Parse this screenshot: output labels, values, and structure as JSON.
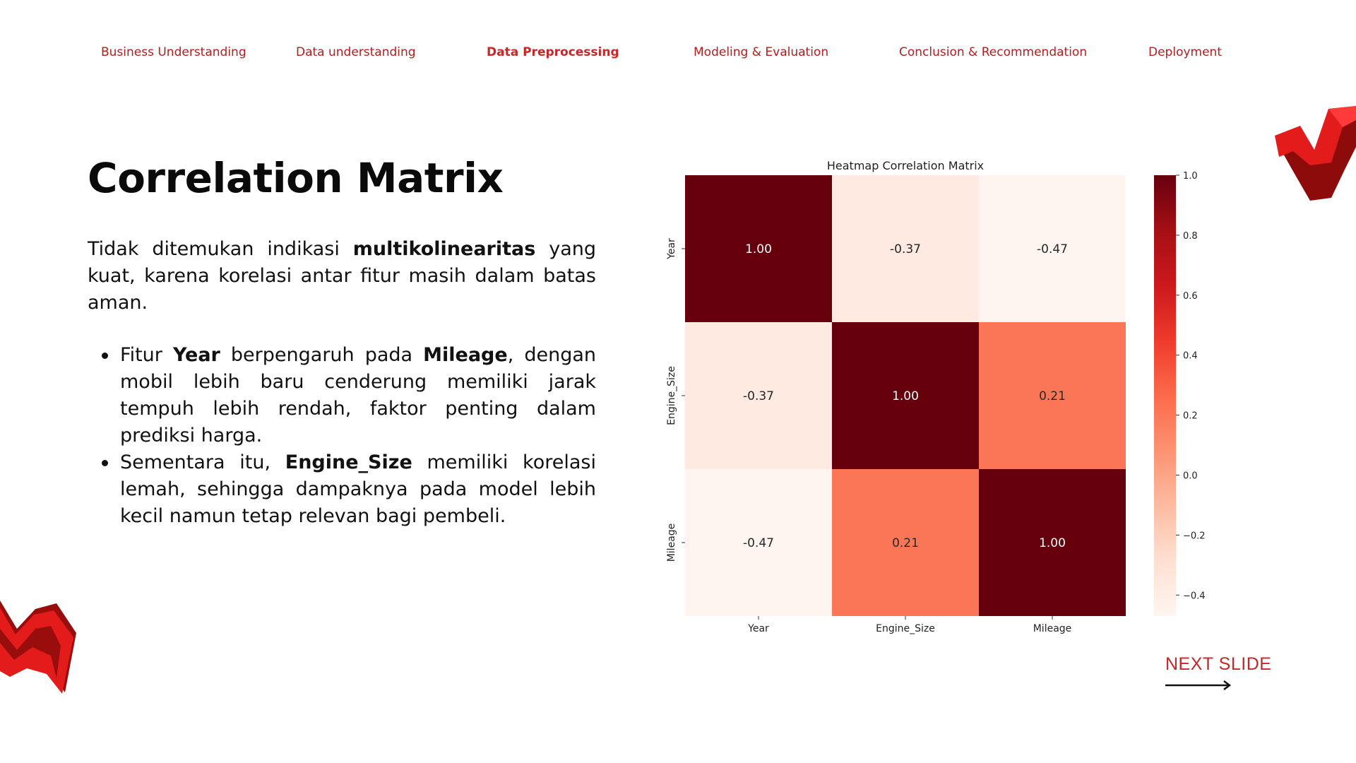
{
  "nav": {
    "items": [
      {
        "label": "Business Understanding",
        "active": false
      },
      {
        "label": "Data understanding",
        "active": false
      },
      {
        "label": "Data Preprocessing",
        "active": true
      },
      {
        "label": "Modeling & Evaluation",
        "active": false
      },
      {
        "label": "Conclusion & Recommendation",
        "active": false
      },
      {
        "label": "Deployment",
        "active": false
      }
    ]
  },
  "content": {
    "title": "Correlation Matrix",
    "intro": {
      "pre": "Tidak ditemukan indikasi ",
      "bold": "multikolinearitas",
      "post": " yang kuat, karena korelasi antar fitur masih dalam batas aman."
    },
    "bullets": [
      {
        "t1": "Fitur ",
        "b1": "Year",
        "t2": " berpengaruh pada ",
        "b2": "Mileage",
        "t3": ", dengan mobil lebih baru cenderung memiliki jarak tempuh lebih rendah, faktor penting dalam prediksi harga."
      },
      {
        "t1": "Sementara itu, ",
        "b1": "Engine_Size",
        "t2": " memiliki korelasi lemah, sehingga dampaknya pada model lebih kecil namun tetap relevan bagi pembeli."
      }
    ]
  },
  "next_slide": {
    "label": "NEXT SLIDE"
  },
  "colors": {
    "accent": "#c62828",
    "nav_text": "#b71c1c",
    "heat_low": "#fff5f0",
    "heat_high": "#67000d"
  },
  "chart_data": {
    "type": "heatmap",
    "title": "Heatmap Correlation Matrix",
    "x_labels": [
      "Year",
      "Engine_Size",
      "Mileage"
    ],
    "y_labels": [
      "Year",
      "Engine_Size",
      "Mileage"
    ],
    "values": [
      [
        1.0,
        -0.37,
        -0.47
      ],
      [
        -0.37,
        1.0,
        0.21
      ],
      [
        -0.47,
        0.21,
        1.0
      ]
    ],
    "annotation_format": "0.00",
    "colormap": "Reds",
    "vmin": -0.47,
    "vmax": 1.0,
    "colorbar_ticks": [
      1.0,
      0.8,
      0.6,
      0.4,
      0.2,
      0.0,
      -0.2,
      -0.4
    ],
    "colorbar_tick_labels": [
      "1.0",
      "0.8",
      "0.6",
      "0.4",
      "0.2",
      "0.0",
      "−0.2",
      "−0.4"
    ]
  }
}
